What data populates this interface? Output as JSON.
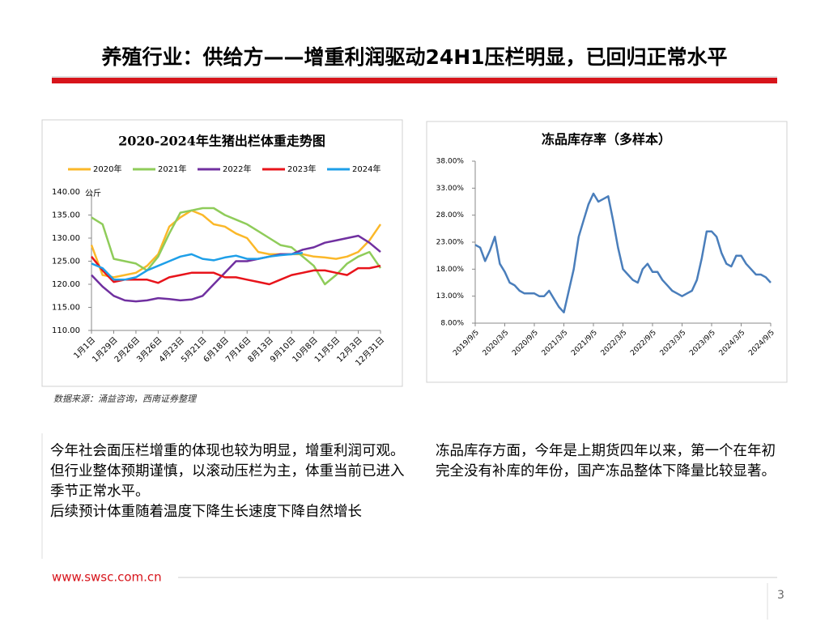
{
  "header": {
    "title": "养殖行业：供给方——增重利润驱动24H1压栏明显，已回归正常水平"
  },
  "chart_data": [
    {
      "type": "line",
      "title": "2020-2024年生猪出栏体重走势图",
      "y_unit": "公斤",
      "categories": [
        "1月1日",
        null,
        "1月29日",
        null,
        "2月26日",
        null,
        "3月26日",
        null,
        "4月23日",
        null,
        "5月21日",
        null,
        "6月18日",
        null,
        "7月16日",
        null,
        "8月13日",
        null,
        "9月10日",
        null,
        "10月8日",
        null,
        "11月5日",
        null,
        "12月3日",
        null,
        "12月31日"
      ],
      "series": [
        {
          "name": "2020年",
          "color": "#fbb829",
          "values": [
            128.5,
            122,
            121.5,
            122,
            122.5,
            124,
            126.5,
            132.5,
            134.5,
            136,
            135,
            133,
            132.5,
            131,
            130,
            127,
            126.5,
            126.5,
            126.5,
            126.5,
            126,
            125.8,
            125.5,
            126,
            127,
            129.5,
            133
          ]
        },
        {
          "name": "2021年",
          "color": "#8fcc5a",
          "values": [
            134.5,
            133,
            125.5,
            125,
            124.5,
            123,
            126,
            131,
            135.5,
            136,
            136.5,
            136.5,
            135,
            134,
            133,
            131.5,
            130,
            128.5,
            128,
            126,
            124,
            120,
            122,
            124.5,
            126,
            127,
            123.5
          ]
        },
        {
          "name": "2022年",
          "color": "#7030a0",
          "values": [
            122,
            119.5,
            117.5,
            116.5,
            116.3,
            116.5,
            117,
            116.8,
            116.5,
            116.7,
            117.5,
            120,
            122.5,
            125,
            125,
            125.5,
            126,
            126.5,
            126.5,
            127.5,
            128,
            129,
            129.5,
            130,
            130.5,
            129,
            127
          ]
        },
        {
          "name": "2023年",
          "color": "#e8141b",
          "values": [
            126,
            123,
            120.5,
            121,
            121,
            121,
            120.3,
            121.5,
            122,
            122.5,
            122.5,
            122.5,
            121.5,
            121.5,
            121,
            120.5,
            120,
            121,
            122,
            122.5,
            123,
            123,
            122.5,
            122,
            123.5,
            123.5,
            124
          ]
        },
        {
          "name": "2024年",
          "color": "#1e9fe8",
          "values": [
            124.5,
            123.5,
            121,
            121,
            121.5,
            123,
            124,
            125,
            126,
            126.5,
            125.5,
            125.2,
            125.8,
            126.2,
            125.5,
            125.5,
            126,
            126.3,
            126.5,
            126.8,
            null,
            null,
            null,
            null,
            null,
            null,
            null
          ]
        }
      ],
      "ylim": [
        110,
        140
      ],
      "yticks": [
        {
          "value": 110,
          "label": "110.00"
        },
        {
          "value": 115,
          "label": "115.00"
        },
        {
          "value": 120,
          "label": "120.00"
        },
        {
          "value": 125,
          "label": "125.00"
        },
        {
          "value": 130,
          "label": "130.00"
        },
        {
          "value": 135,
          "label": "135.00"
        },
        {
          "value": 140,
          "label": "140.00"
        }
      ],
      "legend": "top"
    },
    {
      "type": "line",
      "title": "冻品库存率（多样本）",
      "color": "#4a7ebb",
      "categories": [
        "2019/9/5",
        null,
        null,
        null,
        null,
        null,
        "2020/3/5",
        null,
        null,
        null,
        null,
        null,
        "2020/9/5",
        null,
        null,
        null,
        null,
        null,
        "2021/3/5",
        null,
        null,
        null,
        null,
        null,
        "2021/9/5",
        null,
        null,
        null,
        null,
        null,
        "2022/3/5",
        null,
        null,
        null,
        null,
        null,
        "2022/9/5",
        null,
        null,
        null,
        null,
        null,
        "2023/3/5",
        null,
        null,
        null,
        null,
        null,
        "2023/9/5",
        null,
        null,
        null,
        null,
        null,
        "2024/3/5",
        null,
        null,
        null,
        null,
        null,
        "2024/9/5"
      ],
      "values": [
        22.5,
        22,
        19.5,
        21.5,
        24,
        19,
        17.5,
        15.5,
        15,
        14,
        13.5,
        13.5,
        13.5,
        13,
        13,
        14,
        12.5,
        11,
        10,
        14,
        18,
        24,
        27,
        30,
        32,
        30.5,
        31,
        31.5,
        27,
        22,
        18,
        17,
        16,
        15.5,
        18,
        19,
        17.5,
        17.5,
        16,
        15,
        14,
        13.5,
        13,
        13.5,
        14,
        16,
        20,
        25,
        25,
        24,
        21,
        19,
        18.5,
        20.5,
        20.5,
        19,
        18,
        17,
        17,
        16.5,
        15.5
      ],
      "ylim": [
        8,
        38
      ],
      "yticks": [
        {
          "value": 8,
          "label": "8.00%"
        },
        {
          "value": 13,
          "label": "13.00%"
        },
        {
          "value": 18,
          "label": "18.00%"
        },
        {
          "value": 23,
          "label": "23.00%"
        },
        {
          "value": 28,
          "label": "28.00%"
        },
        {
          "value": 33,
          "label": "33.00%"
        },
        {
          "value": 38,
          "label": "38.00%"
        }
      ]
    }
  ],
  "source": "数据来源：涌益咨询，西南证券整理",
  "paragraphs": {
    "left": [
      "今年社会面压栏增重的体现也较为明显，增重利润可观。但行业整体预期谨慎，以滚动压栏为主，体重当前已进入季节正常水平。",
      "后续预计体重随着温度下降生长速度下降自然增长"
    ],
    "right": [
      "冻品库存方面，今年是上期货四年以来，第一个在年初完全没有补库的年份，国产冻品整体下降量比较显著。"
    ]
  },
  "footer": {
    "url": "www.swsc.com.cn",
    "page": "3"
  }
}
